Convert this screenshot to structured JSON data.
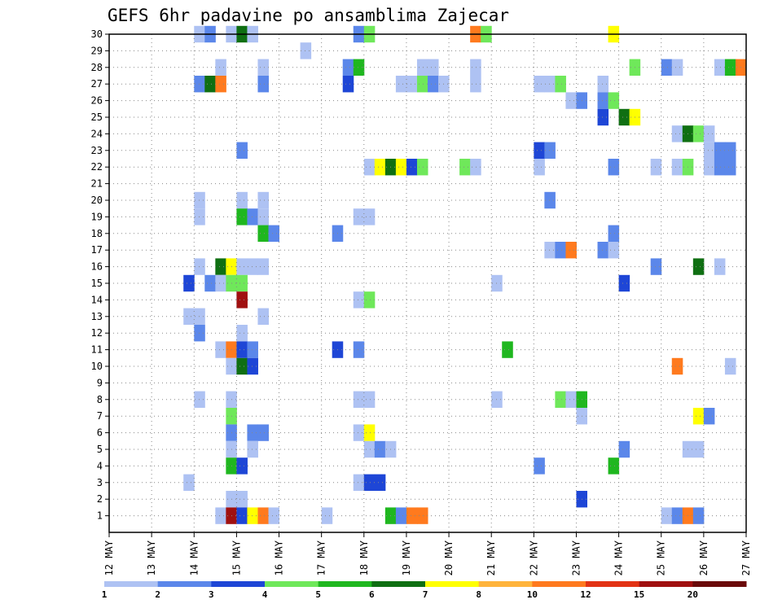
{
  "chart_data": {
    "type": "heatmap",
    "title": "GEFS 6hr padavine po ansamblima Zajecar",
    "x_tick_labels": [
      "12 MAY",
      "13 MAY",
      "14 MAY",
      "15 MAY",
      "16 MAY",
      "17 MAY",
      "18 MAY",
      "19 MAY",
      "20 MAY",
      "21 MAY",
      "22 MAY",
      "23 MAY",
      "24 MAY",
      "25 MAY",
      "26 MAY",
      "27 MAY"
    ],
    "y_tick_labels": [
      "1",
      "2",
      "3",
      "4",
      "5",
      "6",
      "7",
      "8",
      "9",
      "10",
      "11",
      "12",
      "13",
      "14",
      "15",
      "16",
      "17",
      "18",
      "19",
      "20",
      "21",
      "22",
      "23",
      "24",
      "25",
      "26",
      "27",
      "28",
      "29",
      "30"
    ],
    "xlim_days": [
      0,
      15
    ],
    "ylim_members": [
      0,
      30
    ],
    "grid": true,
    "legend": {
      "placement": "bottom",
      "labels": [
        "1",
        "2",
        "3",
        "4",
        "5",
        "6",
        "7",
        "8",
        "10",
        "12",
        "15",
        "20"
      ],
      "colors": [
        "#aec2f3",
        "#5b87ea",
        "#1e46d6",
        "#6fe85a",
        "#1fb71f",
        "#0f6f12",
        "#ffff00",
        "#ffb43c",
        "#ff7a1e",
        "#e23214",
        "#a01010",
        "#6a0a0a"
      ]
    },
    "cells_note_units": "each cell: [member, day_offset_from_12_MAY, color_class_index]",
    "cells": [
      [
        30,
        2.0,
        0
      ],
      [
        30,
        2.25,
        1
      ],
      [
        30,
        2.75,
        0
      ],
      [
        30,
        3.0,
        5
      ],
      [
        30,
        3.25,
        0
      ],
      [
        30,
        5.75,
        1
      ],
      [
        30,
        6.0,
        3
      ],
      [
        30,
        8.5,
        8
      ],
      [
        30,
        8.75,
        3
      ],
      [
        30,
        11.75,
        6
      ],
      [
        29,
        4.5,
        0
      ],
      [
        28,
        2.5,
        0
      ],
      [
        28,
        3.5,
        0
      ],
      [
        28,
        5.5,
        1
      ],
      [
        28,
        5.75,
        4
      ],
      [
        28,
        7.25,
        0
      ],
      [
        28,
        7.5,
        0
      ],
      [
        28,
        8.5,
        0
      ],
      [
        28,
        12.25,
        3
      ],
      [
        28,
        13.0,
        1
      ],
      [
        28,
        13.25,
        0
      ],
      [
        28,
        14.25,
        0
      ],
      [
        28,
        14.5,
        4
      ],
      [
        28,
        14.75,
        8
      ],
      [
        27,
        2.0,
        1
      ],
      [
        27,
        2.25,
        5
      ],
      [
        27,
        2.5,
        8
      ],
      [
        27,
        3.5,
        1
      ],
      [
        27,
        5.5,
        2
      ],
      [
        27,
        6.75,
        0
      ],
      [
        27,
        7.0,
        0
      ],
      [
        27,
        7.25,
        3
      ],
      [
        27,
        7.5,
        1
      ],
      [
        27,
        7.75,
        0
      ],
      [
        27,
        8.5,
        0
      ],
      [
        27,
        10.0,
        0
      ],
      [
        27,
        10.25,
        0
      ],
      [
        27,
        10.5,
        3
      ],
      [
        27,
        11.5,
        0
      ],
      [
        26,
        10.75,
        0
      ],
      [
        26,
        11.0,
        1
      ],
      [
        26,
        11.5,
        1
      ],
      [
        26,
        11.75,
        3
      ],
      [
        25,
        11.5,
        2
      ],
      [
        25,
        12.0,
        5
      ],
      [
        25,
        12.25,
        6
      ],
      [
        24,
        13.25,
        0
      ],
      [
        24,
        13.5,
        5
      ],
      [
        24,
        13.75,
        3
      ],
      [
        24,
        14.0,
        0
      ],
      [
        23,
        3.0,
        1
      ],
      [
        23,
        10.0,
        2
      ],
      [
        23,
        10.25,
        1
      ],
      [
        23,
        14.0,
        0
      ],
      [
        23,
        14.25,
        1
      ],
      [
        23,
        14.5,
        1
      ],
      [
        22,
        6.0,
        0
      ],
      [
        22,
        6.25,
        6
      ],
      [
        22,
        6.5,
        5
      ],
      [
        22,
        6.75,
        6
      ],
      [
        22,
        7.0,
        2
      ],
      [
        22,
        7.25,
        3
      ],
      [
        22,
        8.25,
        3
      ],
      [
        22,
        8.5,
        0
      ],
      [
        22,
        10.0,
        0
      ],
      [
        22,
        11.75,
        1
      ],
      [
        22,
        12.75,
        0
      ],
      [
        22,
        13.25,
        0
      ],
      [
        22,
        13.5,
        3
      ],
      [
        22,
        14.0,
        0
      ],
      [
        22,
        14.25,
        1
      ],
      [
        22,
        14.5,
        1
      ],
      [
        20,
        2.0,
        0
      ],
      [
        20,
        3.0,
        0
      ],
      [
        20,
        3.5,
        0
      ],
      [
        20,
        10.25,
        1
      ],
      [
        19,
        2.0,
        0
      ],
      [
        19,
        3.0,
        4
      ],
      [
        19,
        3.25,
        1
      ],
      [
        19,
        3.5,
        0
      ],
      [
        19,
        5.75,
        0
      ],
      [
        19,
        6.0,
        0
      ],
      [
        18,
        3.5,
        4
      ],
      [
        18,
        3.75,
        1
      ],
      [
        18,
        5.25,
        1
      ],
      [
        18,
        11.75,
        1
      ],
      [
        17,
        10.25,
        0
      ],
      [
        17,
        10.5,
        1
      ],
      [
        17,
        10.75,
        8
      ],
      [
        17,
        11.5,
        1
      ],
      [
        17,
        11.75,
        0
      ],
      [
        16,
        2.0,
        0
      ],
      [
        16,
        2.5,
        5
      ],
      [
        16,
        2.75,
        6
      ],
      [
        16,
        3.0,
        0
      ],
      [
        16,
        3.25,
        0
      ],
      [
        16,
        3.5,
        0
      ],
      [
        16,
        12.75,
        1
      ],
      [
        16,
        13.75,
        5
      ],
      [
        16,
        14.25,
        0
      ],
      [
        15,
        1.75,
        2
      ],
      [
        15,
        2.25,
        1
      ],
      [
        15,
        2.5,
        0
      ],
      [
        15,
        2.75,
        3
      ],
      [
        15,
        3.0,
        3
      ],
      [
        15,
        9.0,
        0
      ],
      [
        15,
        12.0,
        2
      ],
      [
        14,
        3.0,
        10
      ],
      [
        14,
        5.75,
        0
      ],
      [
        14,
        6.0,
        3
      ],
      [
        13,
        1.75,
        0
      ],
      [
        13,
        2.0,
        0
      ],
      [
        13,
        3.5,
        0
      ],
      [
        12,
        2.0,
        1
      ],
      [
        12,
        3.0,
        0
      ],
      [
        11,
        2.5,
        0
      ],
      [
        11,
        2.75,
        8
      ],
      [
        11,
        3.0,
        2
      ],
      [
        11,
        3.25,
        1
      ],
      [
        11,
        5.25,
        2
      ],
      [
        11,
        5.75,
        1
      ],
      [
        11,
        9.25,
        4
      ],
      [
        10,
        2.75,
        0
      ],
      [
        10,
        3.0,
        5
      ],
      [
        10,
        3.25,
        2
      ],
      [
        10,
        13.25,
        8
      ],
      [
        10,
        14.5,
        0
      ],
      [
        8,
        2.0,
        0
      ],
      [
        8,
        2.75,
        0
      ],
      [
        8,
        5.75,
        0
      ],
      [
        8,
        6.0,
        0
      ],
      [
        8,
        9.0,
        0
      ],
      [
        8,
        10.5,
        3
      ],
      [
        8,
        10.75,
        0
      ],
      [
        8,
        11.0,
        4
      ],
      [
        7,
        2.75,
        3
      ],
      [
        7,
        11.0,
        0
      ],
      [
        7,
        13.75,
        6
      ],
      [
        7,
        14.0,
        1
      ],
      [
        6,
        2.75,
        1
      ],
      [
        6,
        3.25,
        1
      ],
      [
        6,
        3.5,
        1
      ],
      [
        6,
        5.75,
        0
      ],
      [
        6,
        6.0,
        6
      ],
      [
        5,
        2.75,
        0
      ],
      [
        5,
        3.25,
        0
      ],
      [
        5,
        6.0,
        0
      ],
      [
        5,
        6.25,
        1
      ],
      [
        5,
        6.5,
        0
      ],
      [
        5,
        12.0,
        1
      ],
      [
        5,
        13.5,
        0
      ],
      [
        5,
        13.75,
        0
      ],
      [
        4,
        2.75,
        4
      ],
      [
        4,
        3.0,
        2
      ],
      [
        4,
        10.0,
        1
      ],
      [
        4,
        11.75,
        4
      ],
      [
        3,
        1.75,
        0
      ],
      [
        3,
        5.75,
        0
      ],
      [
        3,
        6.0,
        2
      ],
      [
        3,
        6.25,
        2
      ],
      [
        2,
        2.75,
        0
      ],
      [
        2,
        3.0,
        0
      ],
      [
        2,
        11.0,
        2
      ],
      [
        1,
        2.5,
        0
      ],
      [
        1,
        2.75,
        10
      ],
      [
        1,
        3.0,
        2
      ],
      [
        1,
        3.25,
        6
      ],
      [
        1,
        3.5,
        8
      ],
      [
        1,
        3.75,
        0
      ],
      [
        1,
        5.0,
        0
      ],
      [
        1,
        6.5,
        4
      ],
      [
        1,
        6.75,
        1
      ],
      [
        1,
        7.0,
        8
      ],
      [
        1,
        7.25,
        8
      ],
      [
        1,
        13.0,
        0
      ],
      [
        1,
        13.25,
        1
      ],
      [
        1,
        13.5,
        8
      ],
      [
        1,
        13.75,
        1
      ]
    ]
  }
}
